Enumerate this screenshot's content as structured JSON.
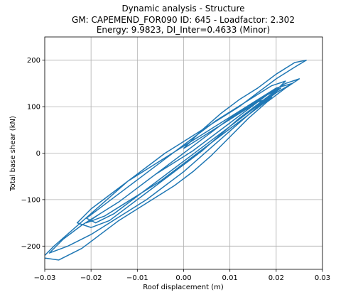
{
  "chart_data": {
    "type": "line",
    "title_lines": [
      "Dynamic analysis - Structure",
      "GM: CAPEMEND_FOR090 ID: 645 -  Loadfactor: 2.302",
      "Energy: 9.9823, DI_Inter=0.4633 (Minor)"
    ],
    "xlabel": "Roof displacement (m)",
    "ylabel": "Total base shear (kN)",
    "xlim": [
      -0.03,
      0.03
    ],
    "ylim": [
      -250,
      250
    ],
    "xticks": [
      -0.03,
      -0.02,
      -0.01,
      0.0,
      0.01,
      0.02,
      0.03
    ],
    "xtick_labels": [
      "−0.03",
      "−0.02",
      "−0.01",
      "0.00",
      "0.01",
      "0.02",
      "0.03"
    ],
    "yticks": [
      -200,
      -100,
      0,
      100,
      200
    ],
    "ytick_labels": [
      "−200",
      "−100",
      "0",
      "100",
      "200"
    ],
    "grid": true,
    "line_color": "#1f77b4",
    "series": [
      {
        "x": [
          0.0,
          0.004,
          0.008,
          0.012,
          0.016,
          0.02,
          0.024,
          0.0265,
          0.024,
          0.02,
          0.016,
          0.012,
          0.008,
          0.004,
          0.0,
          -0.004,
          -0.008,
          -0.012,
          -0.016,
          -0.02,
          -0.024,
          -0.028,
          -0.0305,
          -0.027,
          -0.022,
          -0.018,
          -0.014,
          -0.01,
          -0.006,
          -0.002,
          0.002,
          0.006,
          0.01,
          0.014,
          0.018,
          0.022,
          0.025,
          0.022,
          0.018,
          0.014,
          0.01,
          0.006,
          0.002,
          -0.002,
          -0.006,
          -0.01,
          -0.014,
          -0.018,
          -0.022,
          -0.026,
          -0.029,
          -0.025,
          -0.02,
          -0.016,
          -0.012,
          -0.008,
          -0.004,
          0.0,
          0.004,
          0.008,
          0.012,
          0.016,
          0.02,
          0.0235,
          0.02,
          0.016,
          0.012,
          0.008,
          0.004,
          0.0,
          -0.004,
          -0.008,
          -0.012,
          -0.016,
          -0.02,
          -0.023,
          -0.02,
          -0.016,
          -0.012,
          -0.008,
          -0.004,
          0.0,
          0.004,
          0.008,
          0.012,
          0.016,
          0.02,
          0.022,
          0.019,
          0.015,
          0.011,
          0.007,
          0.003,
          -0.001,
          -0.005,
          -0.009,
          -0.013,
          -0.017,
          -0.021,
          -0.019,
          -0.015,
          -0.011,
          -0.007,
          -0.003,
          0.001,
          0.005,
          0.009,
          0.013,
          0.017,
          0.021,
          0.018,
          0.014,
          0.01,
          0.006,
          0.002,
          -0.002,
          -0.006,
          -0.01,
          -0.014,
          -0.018,
          -0.021,
          -0.017,
          -0.013,
          -0.009,
          -0.005,
          -0.001,
          0.003,
          0.007,
          0.011,
          0.015,
          0.019,
          0.016,
          0.012,
          0.008,
          0.004,
          0.0
        ],
        "y": [
          10,
          50,
          85,
          115,
          140,
          170,
          195,
          200,
          185,
          160,
          130,
          100,
          75,
          50,
          25,
          0,
          -30,
          -60,
          -95,
          -130,
          -165,
          -200,
          -225,
          -230,
          -205,
          -175,
          -145,
          -120,
          -95,
          -70,
          -40,
          -5,
          35,
          75,
          110,
          140,
          160,
          150,
          125,
          95,
          65,
          35,
          5,
          -20,
          -45,
          -75,
          -105,
          -130,
          -155,
          -185,
          -215,
          -200,
          -175,
          -150,
          -125,
          -100,
          -70,
          -40,
          -5,
          30,
          65,
          100,
          130,
          150,
          140,
          115,
          90,
          65,
          40,
          15,
          -10,
          -35,
          -60,
          -90,
          -120,
          -150,
          -160,
          -145,
          -115,
          -85,
          -55,
          -25,
          5,
          40,
          75,
          105,
          135,
          155,
          145,
          120,
          95,
          70,
          40,
          10,
          -20,
          -50,
          -80,
          -110,
          -140,
          -150,
          -130,
          -100,
          -70,
          -40,
          -10,
          20,
          50,
          80,
          110,
          140,
          125,
          100,
          75,
          45,
          15,
          -15,
          -45,
          -75,
          -105,
          -130,
          -150,
          -135,
          -110,
          -85,
          -60,
          -30,
          0,
          30,
          60,
          90,
          120,
          110,
          85,
          60,
          35,
          10
        ]
      }
    ]
  }
}
